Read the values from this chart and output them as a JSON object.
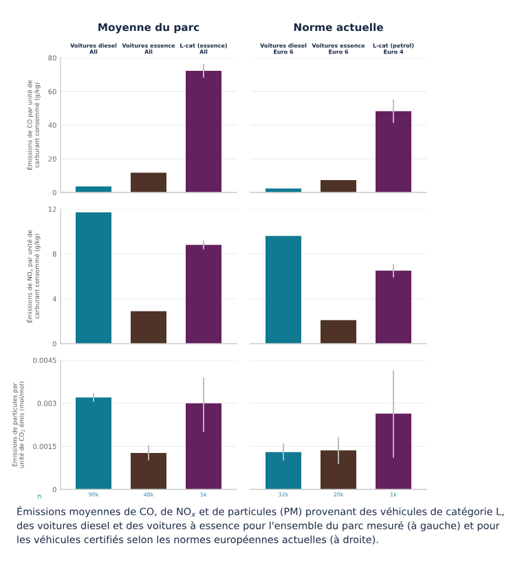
{
  "chart_data": [
    {
      "type": "bar",
      "title": "Moyenne du parc",
      "ylabel": "Émissions de CO par unité de\ncarburant consommé (g/kg)",
      "categories": [
        "Voitures diesel\nAll",
        "Voitures essence\nAll",
        "L-cat (essence)\nAll"
      ],
      "values": [
        3.6,
        11.7,
        72.2
      ],
      "errors": [
        null,
        null,
        4
      ],
      "colors": [
        "#0f7a91",
        "#4e3326",
        "#64215f"
      ],
      "ylim": [
        0,
        80
      ],
      "yticks": [
        0,
        20,
        40,
        60,
        80
      ],
      "grid": "y"
    },
    {
      "type": "bar",
      "title": "Norme actuelle",
      "categories": [
        "Voitures diesel\nEuro 6",
        "Voitures essence\nEuro 6",
        "L-cat (petrol)\nEuro 4"
      ],
      "values": [
        2.3,
        7.3,
        48.3
      ],
      "errors": [
        null,
        null,
        7
      ],
      "colors": [
        "#0f7a91",
        "#4e3326",
        "#64215f"
      ],
      "ylim": [
        0,
        80
      ],
      "yticks": [
        0,
        20,
        40,
        60,
        80
      ],
      "grid": "y",
      "tick_labels": "x"
    },
    {
      "type": "bar",
      "ylabel": "Émissions de NO$_{x}$ par unité de\ncarburant consommé (g/kg)",
      "categories": [
        null,
        null,
        null
      ],
      "values": [
        11.7,
        2.9,
        8.8
      ],
      "errors": [
        null,
        null,
        0.4
      ],
      "colors": [
        "#0f7a91",
        "#4e3326",
        "#64215f"
      ],
      "ylim": [
        0,
        12
      ],
      "yticks": [
        0,
        4,
        8,
        12
      ],
      "grid": "y",
      "tick_labels": "y"
    },
    {
      "type": "bar",
      "categories": [
        null,
        null,
        null
      ],
      "values": [
        9.6,
        2.1,
        6.5
      ],
      "errors": [
        null,
        null,
        0.6
      ],
      "colors": [
        "#0f7a91",
        "#4e3326",
        "#64215f"
      ],
      "ylim": [
        0,
        12
      ],
      "yticks": [
        0,
        4,
        8,
        12
      ],
      "grid": "y",
      "tick_labels": false
    },
    {
      "type": "bar",
      "ylabel": "Émissions de particules par\nunité de CO$_{2}$ émis (mol/mol)",
      "categories": [
        "90k",
        "48k",
        "5k"
      ],
      "values": [
        0.0032,
        0.00127,
        0.003
      ],
      "errors": [
        0.00015,
        0.00026,
        [
          0.002,
          0.0039
        ]
      ],
      "colors": [
        "#0f7a91",
        "#4e3326",
        "#64215f"
      ],
      "ylim": [
        0,
        0.0045
      ],
      "yticks": [
        0,
        0.0015,
        0.003,
        0.0045
      ],
      "grid": "y",
      "annotations": [
        "n",
        "Émissions moyennes de CO, de NO$_{x}$ et de particules (PM) provenant des véhicules de catégorie L, des voitures diesel et des voitures à essence pour l'ensemble du parc mesuré (à gauche) et pour les véhicules certifiés selon les normes européennes actuelles (à droite)."
      ]
    },
    {
      "type": "bar",
      "categories": [
        "32k",
        "20k",
        "1k"
      ],
      "values": [
        0.0013,
        0.00136,
        0.00264
      ],
      "errors": [
        0.0003,
        0.00047,
        [
          0.00111,
          0.00415
        ]
      ],
      "colors": [
        "#0f7a91",
        "#4e3326",
        "#64215f"
      ],
      "ylim": [
        0,
        0.0045
      ],
      "yticks": [
        0,
        0.0015,
        0.003,
        0.0045
      ],
      "grid": "y",
      "tick_labels": "x"
    }
  ]
}
